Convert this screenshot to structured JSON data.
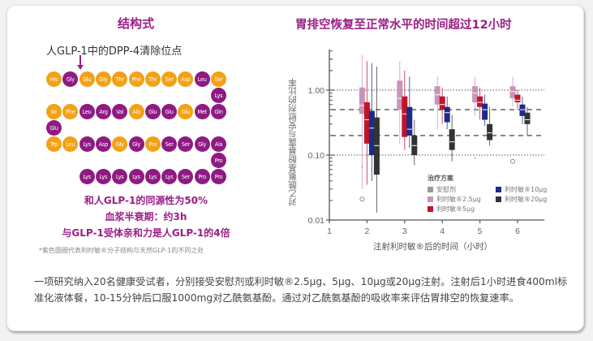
{
  "left_panel": {
    "title": "结构式",
    "cleavage_label": "人GLP-1中的DPP-4清除位点",
    "sequence_rows": [
      [
        {
          "aa": "His",
          "c": "o"
        },
        {
          "aa": "Gly",
          "c": "p"
        },
        {
          "aa": "Glu",
          "c": "o"
        },
        {
          "aa": "Gly",
          "c": "o"
        },
        {
          "aa": "Thr",
          "c": "o"
        },
        {
          "aa": "Phe",
          "c": "o"
        },
        {
          "aa": "Thr",
          "c": "o"
        },
        {
          "aa": "Ser",
          "c": "o"
        },
        {
          "aa": "Asp",
          "c": "o"
        },
        {
          "aa": "Leu",
          "c": "p"
        },
        {
          "aa": "Ser",
          "c": "o"
        }
      ],
      [
        {
          "aa": "Lys",
          "c": "p"
        }
      ],
      [
        {
          "aa": "Ile",
          "c": "o"
        },
        {
          "aa": "Phe",
          "c": "o"
        },
        {
          "aa": "Leu",
          "c": "p"
        },
        {
          "aa": "Arg",
          "c": "p"
        },
        {
          "aa": "Val",
          "c": "p"
        },
        {
          "aa": "Ala",
          "c": "o"
        },
        {
          "aa": "Glu",
          "c": "p"
        },
        {
          "aa": "Glu",
          "c": "p"
        },
        {
          "aa": "Glu",
          "c": "o"
        },
        {
          "aa": "Met",
          "c": "p"
        },
        {
          "aa": "Gln",
          "c": "p"
        }
      ],
      [
        {
          "aa": "Glu",
          "c": "p"
        }
      ],
      [
        {
          "aa": "Trp",
          "c": "o"
        },
        {
          "aa": "Leu",
          "c": "o"
        },
        {
          "aa": "Lys",
          "c": "p"
        },
        {
          "aa": "Asp",
          "c": "p"
        },
        {
          "aa": "Gly",
          "c": "o"
        },
        {
          "aa": "Gly",
          "c": "p"
        },
        {
          "aa": "Pro",
          "c": "o"
        },
        {
          "aa": "Ser",
          "c": "p"
        },
        {
          "aa": "Ser",
          "c": "p"
        },
        {
          "aa": "Gly",
          "c": "p"
        },
        {
          "aa": "Ala",
          "c": "p"
        }
      ],
      [
        {
          "aa": "Pro",
          "c": "p"
        }
      ],
      [
        {
          "aa": "Lys",
          "c": "p"
        },
        {
          "aa": "Lys",
          "c": "p"
        },
        {
          "aa": "Lys",
          "c": "p"
        },
        {
          "aa": "Lys",
          "c": "p"
        },
        {
          "aa": "Lys",
          "c": "p"
        },
        {
          "aa": "Lys",
          "c": "p"
        },
        {
          "aa": "Ser",
          "c": "p"
        },
        {
          "aa": "Pro",
          "c": "p"
        },
        {
          "aa": "Pro",
          "c": "p"
        }
      ]
    ],
    "facts": [
      "和人GLP-1的同源性为50%",
      "血浆半衰期：约3h",
      "与GLP-1受体亲和力是人GLP-1的4倍"
    ],
    "footnote": "*紫色圆圈代表利时敏®分子结构与天然GLP-1的不同之处",
    "colors": {
      "native": "#f2a216",
      "modified": "#8e1a83",
      "accent": "#9a1e87"
    }
  },
  "chart_data": {
    "type": "boxplot",
    "title": "胃排空恢复至正常水平的时间超过12小时",
    "xlabel": "注射利时敏®后的时间（小时）",
    "ylabel": "对乙酰氨基酚暴露与安慰剂的比率",
    "y_scale": "log",
    "ylim": [
      0.01,
      4
    ],
    "xlim": [
      1,
      6.5
    ],
    "x_ticks": [
      "1",
      "2",
      "3",
      "4",
      "5",
      "6"
    ],
    "y_ticks": [
      "0.01",
      "0.10",
      "1.00"
    ],
    "reference_lines": [
      {
        "y": 1.0,
        "style": "dotted"
      },
      {
        "y": 0.5,
        "style": "dashed"
      },
      {
        "y": 0.2,
        "style": "dashed"
      },
      {
        "y": 0.1,
        "style": "dotted"
      }
    ],
    "legend": {
      "title": "治疗方案",
      "items": [
        {
          "label": "安慰剂",
          "color": "#9a9a9a"
        },
        {
          "label": "利时敏®2.5μg",
          "color": "#c994b8"
        },
        {
          "label": "利时敏®5μg",
          "color": "#c0142b"
        },
        {
          "label": "利时敏®10μg",
          "color": "#1c2a8a"
        },
        {
          "label": "利时敏®20μg",
          "color": "#333333"
        }
      ]
    },
    "series": [
      {
        "name": "利时敏®2.5μg",
        "color": "#c994b8",
        "boxes": [
          {
            "x": 2,
            "min": 0.03,
            "q1": 0.43,
            "median": 0.58,
            "q3": 1.1,
            "max": 3.5
          },
          {
            "x": 3,
            "min": 0.15,
            "q1": 0.5,
            "median": 0.75,
            "q3": 1.4,
            "max": 2.8
          },
          {
            "x": 4,
            "min": 0.25,
            "q1": 0.6,
            "median": 0.85,
            "q3": 1.15,
            "max": 1.6
          },
          {
            "x": 5,
            "min": 0.4,
            "q1": 0.65,
            "median": 0.9,
            "q3": 1.15,
            "max": 1.6
          },
          {
            "x": 6,
            "min": 0.55,
            "q1": 0.75,
            "median": 0.95,
            "q3": 1.15,
            "max": 1.6
          }
        ]
      },
      {
        "name": "利时敏®5μg",
        "color": "#c0142b",
        "boxes": [
          {
            "x": 2,
            "min": 0.035,
            "q1": 0.15,
            "median": 0.35,
            "q3": 0.65,
            "max": 2.8
          },
          {
            "x": 3,
            "min": 0.12,
            "q1": 0.19,
            "median": 0.43,
            "q3": 0.8,
            "max": 2.0
          },
          {
            "x": 4,
            "min": 0.3,
            "q1": 0.5,
            "median": 0.6,
            "q3": 0.8,
            "max": 1.1
          },
          {
            "x": 5,
            "min": 0.35,
            "q1": 0.55,
            "median": 0.65,
            "q3": 0.8,
            "max": 1.1
          },
          {
            "x": 6,
            "min": 0.5,
            "q1": 0.65,
            "median": 0.7,
            "q3": 0.85,
            "max": 1.0
          }
        ]
      },
      {
        "name": "利时敏®10μg",
        "color": "#1c2a8a",
        "boxes": [
          {
            "x": 2,
            "min": 0.04,
            "q1": 0.1,
            "median": 0.26,
            "q3": 0.48,
            "max": 2.6
          },
          {
            "x": 3,
            "min": 0.13,
            "q1": 0.2,
            "median": 0.25,
            "q3": 0.55,
            "max": 1.6
          },
          {
            "x": 4,
            "min": 0.25,
            "q1": 0.32,
            "median": 0.45,
            "q3": 0.55,
            "max": 0.8
          },
          {
            "x": 5,
            "min": 0.28,
            "q1": 0.35,
            "median": 0.5,
            "q3": 0.62,
            "max": 0.85
          },
          {
            "x": 6,
            "min": 0.3,
            "q1": 0.4,
            "median": 0.5,
            "q3": 0.6,
            "max": 0.8
          }
        ]
      },
      {
        "name": "利时敏®20μg",
        "color": "#333333",
        "boxes": [
          {
            "x": 2,
            "min": 0.013,
            "q1": 0.05,
            "median": 0.14,
            "q3": 0.38,
            "max": 2.3
          },
          {
            "x": 3,
            "min": 0.07,
            "q1": 0.1,
            "median": 0.14,
            "q3": 0.2,
            "max": 0.35
          },
          {
            "x": 4,
            "min": 0.08,
            "q1": 0.12,
            "median": 0.16,
            "q3": 0.25,
            "max": 0.42
          },
          {
            "x": 5,
            "min": 0.14,
            "q1": 0.17,
            "median": 0.22,
            "q3": 0.3,
            "max": 0.55
          },
          {
            "x": 6,
            "min": 0.2,
            "q1": 0.3,
            "median": 0.35,
            "q3": 0.45,
            "max": 0.55
          }
        ]
      },
      {
        "name": "安慰剂",
        "color": "#9a9a9a",
        "boxes": []
      }
    ],
    "outliers": [
      {
        "x": 2,
        "y": 0.021,
        "shape": "circle"
      },
      {
        "x": 2,
        "y": 0.065,
        "shape": "dot"
      },
      {
        "x": 5,
        "y": 0.09,
        "shape": "dot"
      },
      {
        "x": 6,
        "y": 0.08,
        "shape": "circle"
      }
    ]
  },
  "description": "一项研究纳入20名健康受试者，分别接受安慰剂或利时敏®2.5μg、5μg、10μg或20μg注射。注射后1小时进食400ml标准化液体餐，10-15分钟后口服1000mg对乙酰氨基酚。通过对乙酰氨基酚的吸收率来评估胃排空的恢复速率。"
}
